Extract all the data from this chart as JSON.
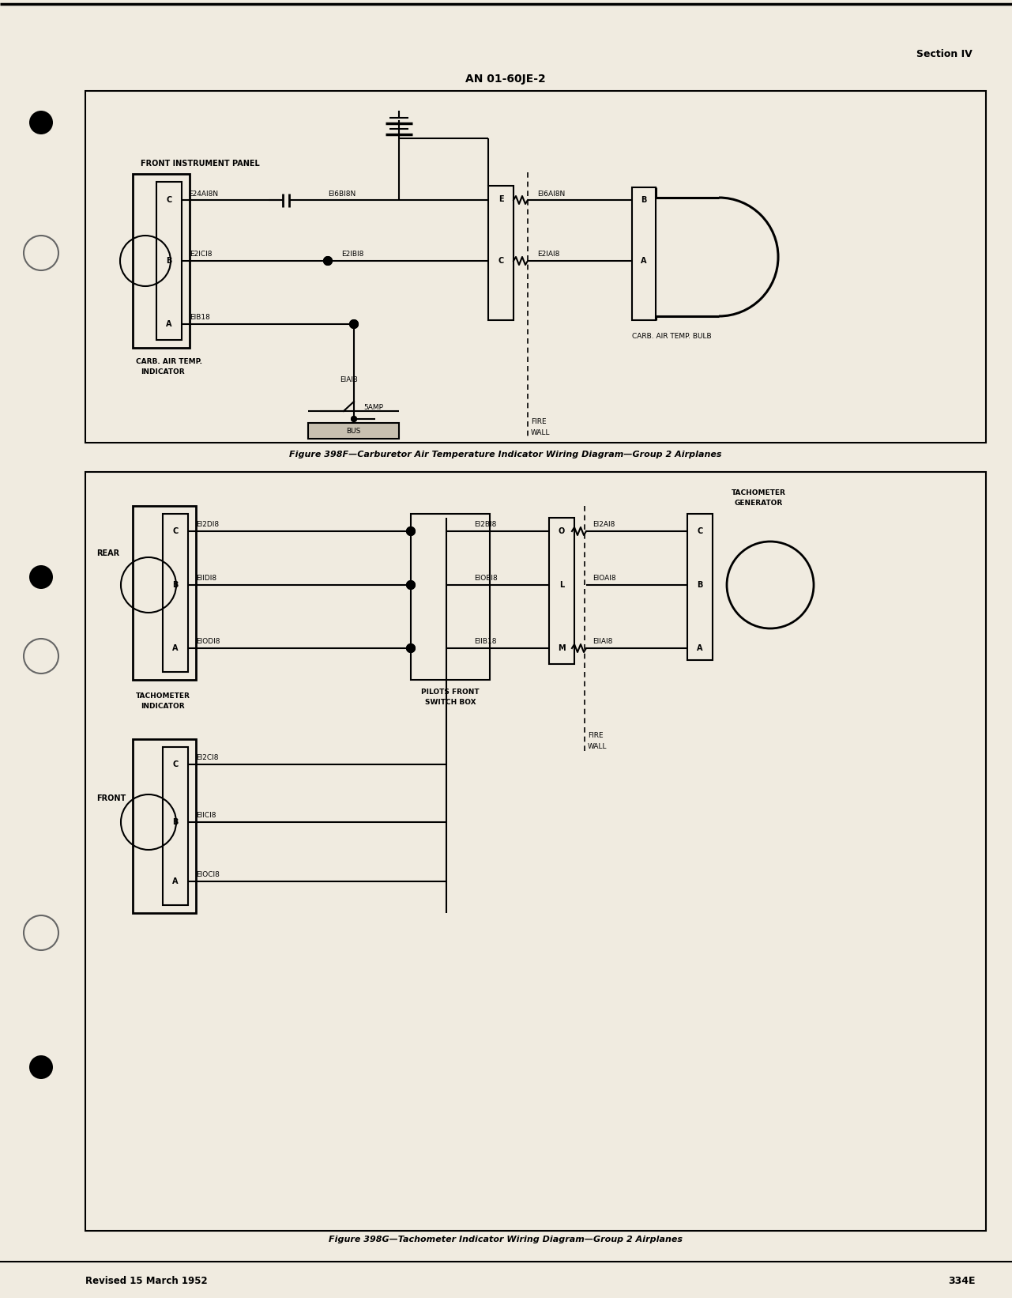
{
  "page_bg": "#f0ebe0",
  "diagram_bg": "#f5f1e8",
  "title": "AN 01-60JE-2",
  "section_label": "Section IV",
  "footer_left": "Revised 15 March 1952",
  "footer_right": "334E",
  "fig1_caption": "Figure 398F—Carburetor Air Temperature Indicator Wiring Diagram—Group 2 Airplanes",
  "fig2_caption": "Figure 398G—Tachometer Indicator Wiring Diagram—Group 2 Airplanes"
}
